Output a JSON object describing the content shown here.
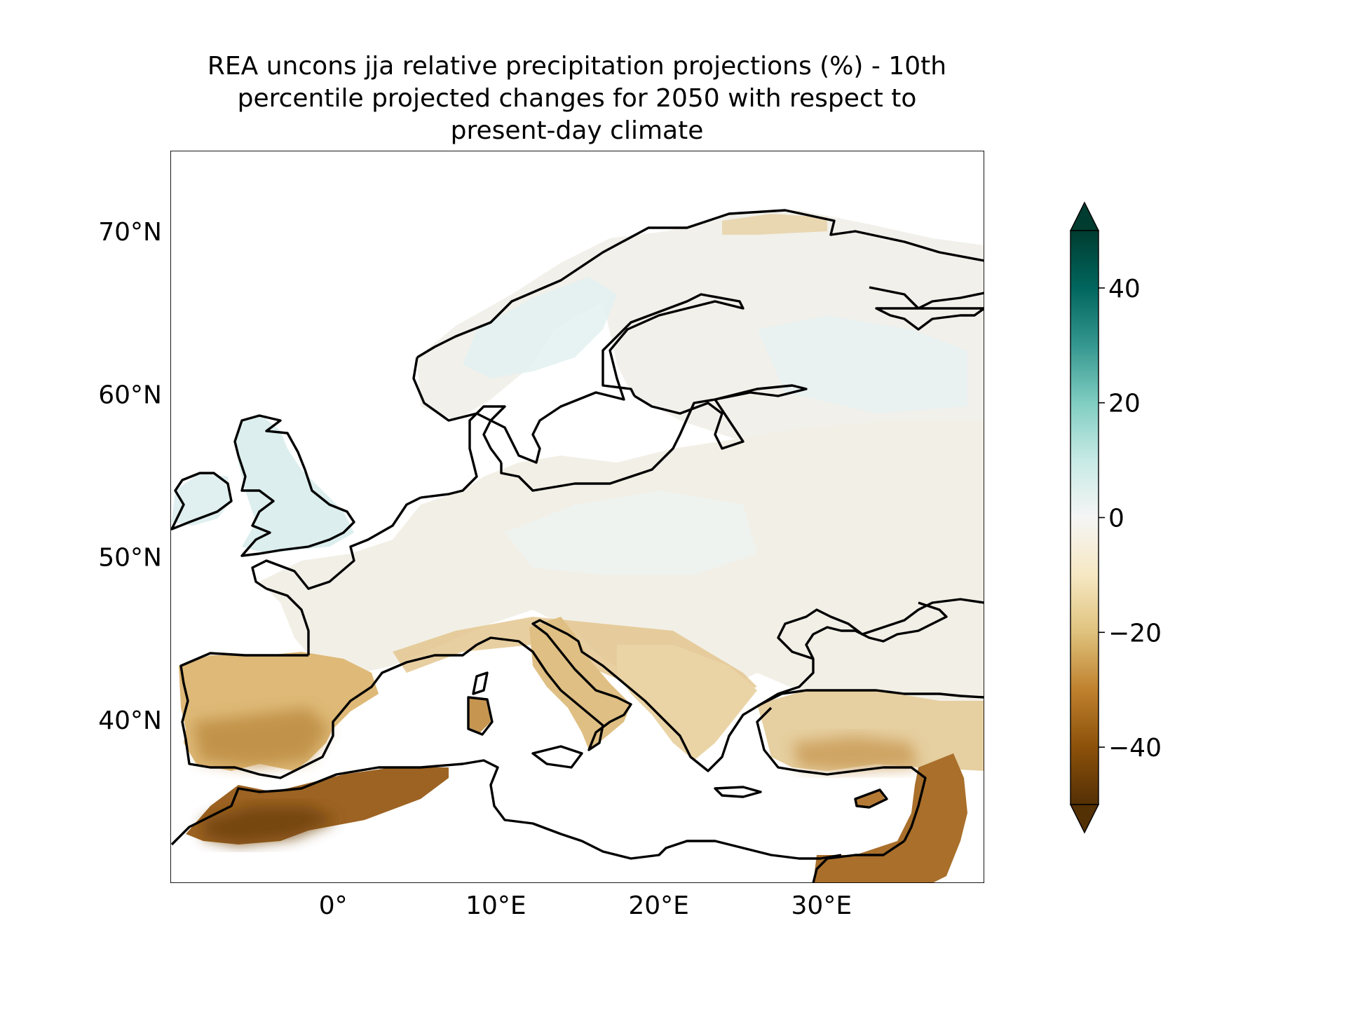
{
  "title": {
    "line1": "REA uncons jja relative precipitation projections (%) - 10th",
    "line2": "percentile projected changes for 2050 with respect to",
    "line3": "present-day climate"
  },
  "map": {
    "extent_lon": [
      -10,
      40
    ],
    "extent_lat": [
      30,
      75
    ],
    "lon_ticks": [
      {
        "value": 0,
        "label": "0°"
      },
      {
        "value": 10,
        "label": "10°E"
      },
      {
        "value": 20,
        "label": "20°E"
      },
      {
        "value": 30,
        "label": "30°E"
      }
    ],
    "lat_ticks": [
      {
        "value": 70,
        "label": "70°N"
      },
      {
        "value": 60,
        "label": "60°N"
      },
      {
        "value": 50,
        "label": "50°N"
      },
      {
        "value": 40,
        "label": "40°N"
      }
    ]
  },
  "colorbar": {
    "min": -50,
    "max": 50,
    "extend": "both",
    "ticks": [
      {
        "value": 40,
        "label": "40"
      },
      {
        "value": 20,
        "label": "20"
      },
      {
        "value": 0,
        "label": "0"
      },
      {
        "value": -20,
        "label": "−20"
      },
      {
        "value": -40,
        "label": "−40"
      }
    ],
    "colormap": [
      {
        "value": -50,
        "color": "#543005"
      },
      {
        "value": -40,
        "color": "#8c510a"
      },
      {
        "value": -30,
        "color": "#bf812d"
      },
      {
        "value": -20,
        "color": "#dfc27d"
      },
      {
        "value": -10,
        "color": "#f6e8c3"
      },
      {
        "value": 0,
        "color": "#f5f5f5"
      },
      {
        "value": 10,
        "color": "#c7eae5"
      },
      {
        "value": 20,
        "color": "#80cdc1"
      },
      {
        "value": 30,
        "color": "#35978f"
      },
      {
        "value": 40,
        "color": "#01665e"
      },
      {
        "value": 50,
        "color": "#003c30"
      }
    ],
    "over_color": "#003c30",
    "under_color": "#543005"
  },
  "colors": {
    "coastline": "#000000",
    "sea": "#ffffff",
    "land_near_zero": "#f3efe4",
    "scandinavia_wet": "#e3f1f1",
    "uk_wet": "#dcefef",
    "south_dry": "#d9b26a",
    "spain_dry": "#c79448",
    "north_africa_dry": "#8f5a1c",
    "levant_dry": "#a36c28"
  }
}
